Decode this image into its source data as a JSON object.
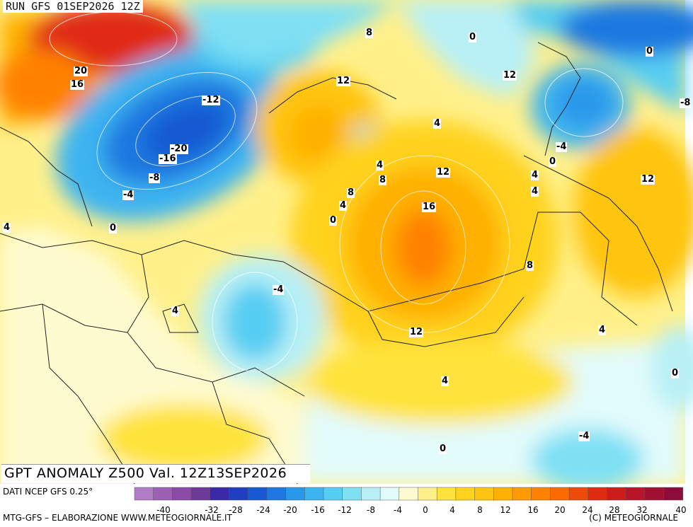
{
  "header": {
    "run_text": "RUN GFS 01SEP2026 12Z"
  },
  "title": {
    "text": "GPT ANOMALY Z500 Val. 12Z13SEP2026"
  },
  "footer": {
    "source": "DATI NCEP GFS 0.25°",
    "credit": "MTG-GFS – ELABORAZIONE WWW.METEOGIORNALE.IT",
    "copyright": "(C) METEOGIORNALE"
  },
  "legend": {
    "ticks": [
      "-40",
      "-32",
      "-28",
      "-24",
      "-20",
      "-16",
      "-12",
      "-8",
      "-4",
      "0",
      "4",
      "8",
      "12",
      "16",
      "20",
      "24",
      "28",
      "32",
      "40"
    ],
    "colors": [
      "#b07cc6",
      "#9b5fb4",
      "#8a4aa6",
      "#6e3a9a",
      "#3a2aa8",
      "#1f3fc0",
      "#1858d2",
      "#1f78e0",
      "#2a98ea",
      "#3cb4f0",
      "#56cdf2",
      "#7fe0f4",
      "#b8f0f6",
      "#e2fbfb",
      "#fffbd0",
      "#fff08a",
      "#ffe33a",
      "#ffd21c",
      "#ffc410",
      "#ffb000",
      "#ff9a00",
      "#ff8200",
      "#ff6a00",
      "#f04a0a",
      "#e02a12",
      "#cc1c1c",
      "#b81628",
      "#a01030",
      "#8c0c3a"
    ]
  },
  "map": {
    "colors": {
      "pale_yellow": "#fffbd0",
      "light_yellow": "#fff08a",
      "yellow": "#ffe33a",
      "gold": "#ffd21c",
      "orange_yellow": "#ffc410",
      "orange": "#ffb000",
      "dark_orange": "#ff8200",
      "red_orange": "#f04a0a",
      "red": "#e02a12",
      "pale_cyan": "#e2fbfb",
      "light_cyan": "#b8f0f6",
      "cyan": "#7fe0f4",
      "sky": "#3cb4f0",
      "blue": "#1f78e0",
      "dark_blue": "#1858d2",
      "deep_blue": "#1f3fc0"
    },
    "contour_labels": [
      "20",
      "16",
      "-12",
      "-20",
      "-16",
      "-8",
      "-4",
      "0",
      "4",
      "8",
      "12",
      "8",
      "0",
      "12",
      "0",
      "-8",
      "4",
      "4",
      "8",
      "12",
      "-4",
      "0",
      "4",
      "12",
      "16",
      "8",
      "-4",
      "4",
      "12",
      "4",
      "0",
      "4",
      "-4",
      "0",
      "0",
      "4",
      "4"
    ]
  }
}
